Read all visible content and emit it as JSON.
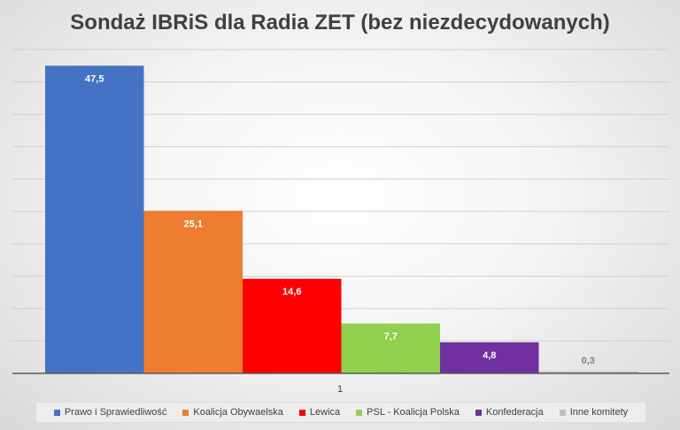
{
  "chart_data": {
    "type": "bar",
    "title": "Sondaż IBRiS dla Radia ZET (bez niezdecydowanych)",
    "categories": [
      "1"
    ],
    "series": [
      {
        "name": "Prawo i Sprawiedliwość",
        "values": [
          47.5
        ],
        "label": "47,5",
        "color": "#4472c4"
      },
      {
        "name": "Koalicja Obywaelska",
        "values": [
          25.1
        ],
        "label": "25,1",
        "color": "#ed7d31"
      },
      {
        "name": "Lewica",
        "values": [
          14.6
        ],
        "label": "14,6",
        "color": "#ff0000"
      },
      {
        "name": "PSL - Koalicja Polska",
        "values": [
          7.7
        ],
        "label": "7,7",
        "color": "#92d050"
      },
      {
        "name": "Konfederacja",
        "values": [
          4.8
        ],
        "label": "4,8",
        "color": "#7030a0"
      },
      {
        "name": "Inne komitety",
        "values": [
          0.3
        ],
        "label": "0,3",
        "color": "#bfbfbf"
      }
    ],
    "ylim": [
      0,
      50
    ],
    "grid": true,
    "legend": "bottom",
    "xlabel": "",
    "ylabel": ""
  }
}
